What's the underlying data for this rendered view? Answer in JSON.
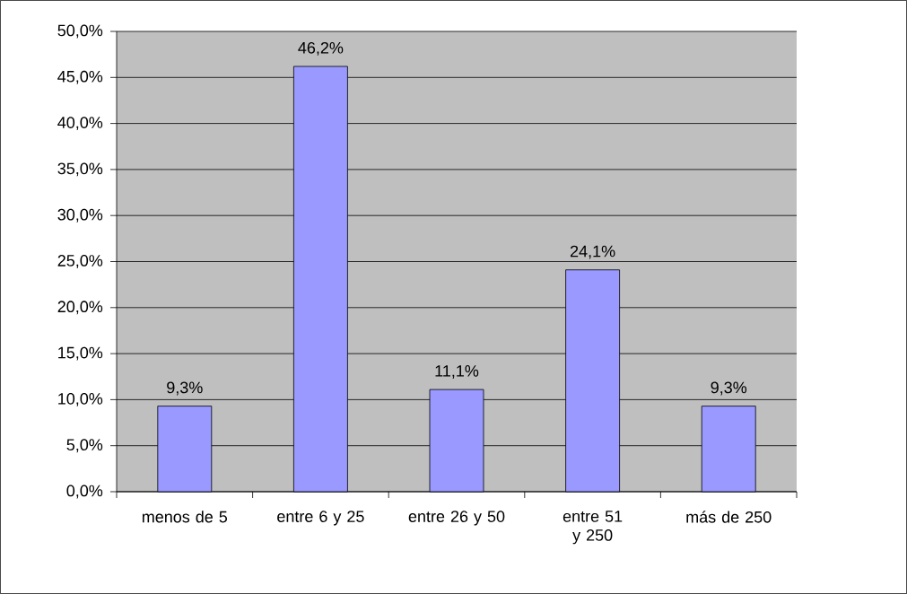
{
  "chart_data": {
    "type": "bar",
    "categories": [
      "menos de 5",
      "entre 6 y 25",
      "entre 26 y 50",
      "entre 51 y 250",
      "más de 250"
    ],
    "values": [
      9.3,
      46.2,
      11.1,
      24.1,
      9.3
    ],
    "value_labels": [
      "9,3%",
      "46,2%",
      "11,1%",
      "24,1%",
      "9,3%"
    ],
    "color": "#9999ff",
    "ylim": [
      0,
      50
    ],
    "yticks": [
      {
        "value": 0,
        "label": "0,0%"
      },
      {
        "value": 5,
        "label": "5,0%"
      },
      {
        "value": 10,
        "label": "10,0%"
      },
      {
        "value": 15,
        "label": "15,0%"
      },
      {
        "value": 20,
        "label": "20,0%"
      },
      {
        "value": 25,
        "label": "25,0%"
      },
      {
        "value": 30,
        "label": "30,0%"
      },
      {
        "value": 35,
        "label": "35,0%"
      },
      {
        "value": 40,
        "label": "40,0%"
      },
      {
        "value": 45,
        "label": "45,0%"
      },
      {
        "value": 50,
        "label": "50,0%"
      }
    ],
    "grid": "y"
  }
}
